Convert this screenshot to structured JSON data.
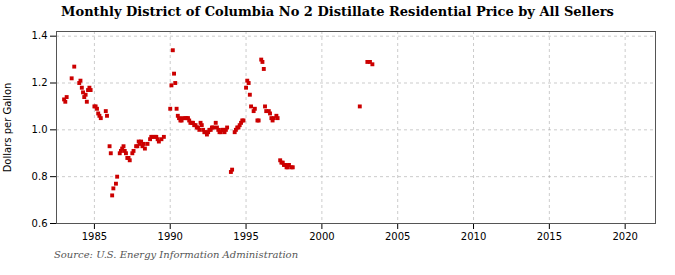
{
  "chart_data": {
    "type": "scatter",
    "title": "Monthly District of Columbia No 2 Distillate Residential Price by All Sellers",
    "ylabel": "Dollars per Gallon",
    "source": "Source: U.S. Energy Information Administration",
    "color": "#cc0000",
    "marker": "square",
    "grid": true,
    "xlim": [
      1982.5,
      2022
    ],
    "ylim": [
      0.6,
      1.42
    ],
    "xticks": [
      1985,
      1990,
      1995,
      2000,
      2005,
      2010,
      2015,
      2020
    ],
    "yticks": [
      0.6,
      0.8,
      {
        "value": 1.0,
        "label": "1.0"
      },
      1.2,
      1.4
    ],
    "x": [
      1983.0,
      1983.08,
      1983.17,
      1983.5,
      1983.67,
      1984.0,
      1984.08,
      1984.17,
      1984.25,
      1984.33,
      1984.42,
      1984.5,
      1984.58,
      1984.67,
      1984.75,
      1985.0,
      1985.08,
      1985.17,
      1985.25,
      1985.33,
      1985.42,
      1985.75,
      1985.83,
      1986.0,
      1986.08,
      1986.17,
      1986.25,
      1986.42,
      1986.5,
      1986.67,
      1986.75,
      1986.83,
      1986.92,
      1987.0,
      1987.08,
      1987.17,
      1987.25,
      1987.33,
      1987.5,
      1987.58,
      1987.75,
      1987.83,
      1987.92,
      1988.0,
      1988.08,
      1988.17,
      1988.25,
      1988.33,
      1988.5,
      1988.67,
      1988.75,
      1988.83,
      1989.0,
      1989.08,
      1989.17,
      1989.25,
      1989.42,
      1989.58,
      1990.0,
      1990.08,
      1990.17,
      1990.25,
      1990.33,
      1990.42,
      1990.5,
      1990.58,
      1990.67,
      1990.75,
      1990.83,
      1991.0,
      1991.08,
      1991.17,
      1991.25,
      1991.33,
      1991.42,
      1991.5,
      1991.58,
      1991.67,
      1991.75,
      1991.83,
      1991.92,
      1992.0,
      1992.08,
      1992.17,
      1992.25,
      1992.33,
      1992.42,
      1992.5,
      1992.58,
      1992.67,
      1992.75,
      1992.83,
      1993.0,
      1993.08,
      1993.17,
      1993.25,
      1993.33,
      1993.42,
      1993.5,
      1993.58,
      1993.67,
      1993.75,
      1994.0,
      1994.08,
      1994.25,
      1994.33,
      1994.42,
      1994.5,
      1994.58,
      1994.67,
      1994.75,
      1994.83,
      1995.0,
      1995.08,
      1995.17,
      1995.25,
      1995.33,
      1995.5,
      1995.58,
      1995.75,
      1995.83,
      1996.0,
      1996.08,
      1996.17,
      1996.25,
      1996.33,
      1996.5,
      1996.58,
      1996.67,
      1996.75,
      1996.83,
      1997.0,
      1997.08,
      1997.25,
      1997.33,
      1997.42,
      1997.5,
      1997.58,
      1997.67,
      1997.75,
      1997.83,
      1998.0,
      1998.08,
      2002.5,
      2003.0,
      2003.17,
      2003.33
    ],
    "values": [
      1.13,
      1.12,
      1.14,
      1.22,
      1.27,
      1.2,
      1.21,
      1.18,
      1.16,
      1.14,
      1.15,
      1.12,
      1.17,
      1.18,
      1.17,
      1.1,
      1.1,
      1.09,
      1.07,
      1.06,
      1.05,
      1.08,
      1.06,
      0.93,
      0.9,
      0.72,
      0.75,
      0.77,
      0.8,
      0.9,
      0.91,
      0.92,
      0.93,
      0.91,
      0.9,
      0.88,
      0.88,
      0.87,
      0.9,
      0.91,
      0.93,
      0.93,
      0.95,
      0.94,
      0.95,
      0.93,
      0.94,
      0.92,
      0.94,
      0.96,
      0.97,
      0.97,
      0.97,
      0.97,
      0.96,
      0.95,
      0.96,
      0.97,
      1.09,
      1.19,
      1.34,
      1.24,
      1.2,
      1.09,
      1.06,
      1.05,
      1.04,
      1.04,
      1.05,
      1.05,
      1.05,
      1.05,
      1.04,
      1.03,
      1.03,
      1.03,
      1.02,
      1.02,
      1.01,
      1.01,
      1.0,
      1.03,
      1.02,
      1.0,
      0.99,
      0.99,
      0.98,
      0.99,
      1.0,
      1.0,
      1.01,
      1.01,
      1.03,
      1.01,
      1.0,
      0.99,
      0.99,
      1.0,
      1.0,
      0.99,
      1.0,
      1.01,
      0.82,
      0.83,
      0.99,
      1.0,
      1.01,
      1.01,
      1.02,
      1.03,
      1.04,
      1.04,
      1.18,
      1.21,
      1.2,
      1.15,
      1.1,
      1.08,
      1.09,
      1.04,
      1.04,
      1.3,
      1.29,
      1.26,
      1.1,
      1.08,
      1.08,
      1.07,
      1.05,
      1.04,
      1.05,
      1.06,
      1.05,
      0.87,
      0.86,
      0.86,
      0.85,
      0.85,
      0.84,
      0.84,
      0.85,
      0.84,
      0.84,
      1.1,
      1.29,
      1.29,
      1.28
    ]
  }
}
